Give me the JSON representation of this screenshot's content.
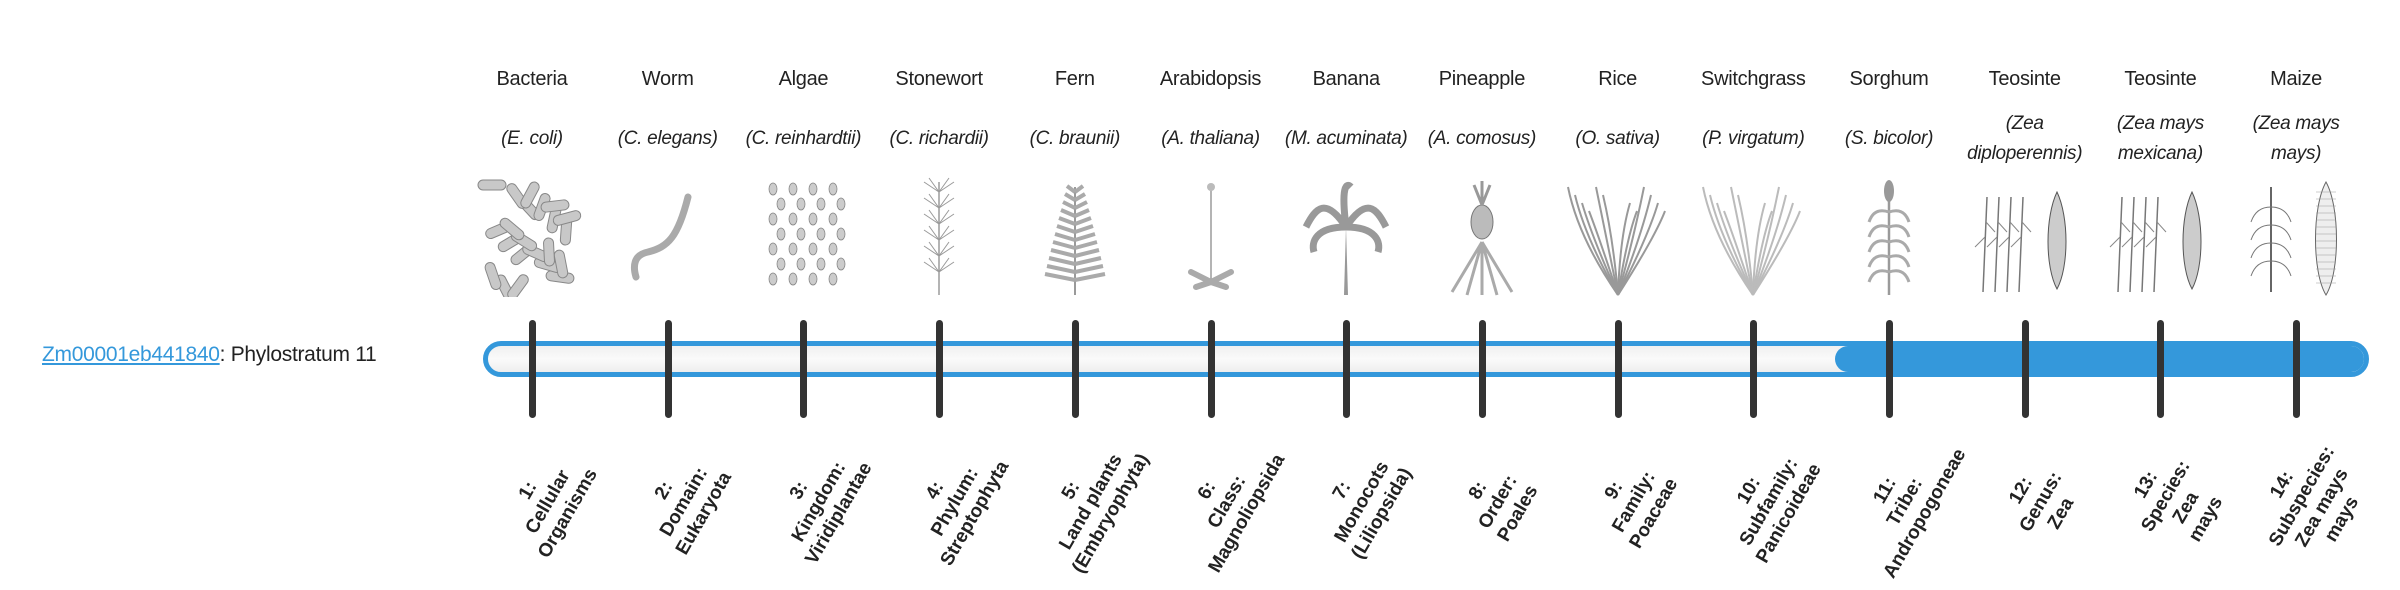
{
  "gene": {
    "id": "Zm00001eb441840",
    "suffix": ": Phylostratum 11"
  },
  "progress": {
    "phylostratum": 11,
    "total": 14,
    "fill_color": "#3498db",
    "tick_color": "#333333"
  },
  "organisms": [
    {
      "name": "Bacteria",
      "species": "(E. coli)",
      "icon": "rod-bacteria-icon"
    },
    {
      "name": "Worm",
      "species": "(C. elegans)",
      "icon": "worm-icon"
    },
    {
      "name": "Algae",
      "species": "(C. reinhardtii)",
      "icon": "algae-cells-icon"
    },
    {
      "name": "Stonewort",
      "species": "(C. richardii)",
      "icon": "stonewort-icon"
    },
    {
      "name": "Fern",
      "species": "(C. braunii)",
      "icon": "fern-icon"
    },
    {
      "name": "Arabidopsis",
      "species": "(A. thaliana)",
      "icon": "arabidopsis-icon"
    },
    {
      "name": "Banana",
      "species": "(M. acuminata)",
      "icon": "banana-plant-icon"
    },
    {
      "name": "Pineapple",
      "species": "(A. comosus)",
      "icon": "pineapple-icon"
    },
    {
      "name": "Rice",
      "species": "(O. sativa)",
      "icon": "rice-plant-icon"
    },
    {
      "name": "Switchgrass",
      "species": "(P. virgatum)",
      "icon": "switchgrass-icon"
    },
    {
      "name": "Sorghum",
      "species": "(S. bicolor)",
      "icon": "sorghum-icon"
    },
    {
      "name": "Teosinte",
      "species": "(Zea diploperennis)",
      "icon": "teosinte-icon"
    },
    {
      "name": "Teosinte",
      "species": "(Zea mays mexicana)",
      "icon": "teosinte-icon"
    },
    {
      "name": "Maize",
      "species": "(Zea mays mays)",
      "icon": "maize-icon"
    }
  ],
  "ranks": [
    [
      "1:",
      "Cellular",
      "Organisms"
    ],
    [
      "2:",
      "Domain:",
      "Eukaryota"
    ],
    [
      "3:",
      "Kingdom:",
      "Viridiplantae"
    ],
    [
      "4:",
      "Phylum:",
      "Streptophyta"
    ],
    [
      "5:",
      "Land plants",
      "(Embryophyta)"
    ],
    [
      "6:",
      "Class:",
      "Magnoliopsida"
    ],
    [
      "7:",
      "Monocots",
      "(Liliopsida)"
    ],
    [
      "8:",
      "Order:",
      "Poales"
    ],
    [
      "9:",
      "Family:",
      "Poaceae"
    ],
    [
      "10:",
      "Subfamily:",
      "Panicoideae"
    ],
    [
      "11:",
      "Tribe:",
      "Andropogoneae"
    ],
    [
      "12:",
      "Genus:",
      "Zea"
    ],
    [
      "13:",
      "Species:",
      "Zea",
      "mays"
    ],
    [
      "14:",
      "Subspecies:",
      "Zea mays",
      "mays"
    ]
  ]
}
